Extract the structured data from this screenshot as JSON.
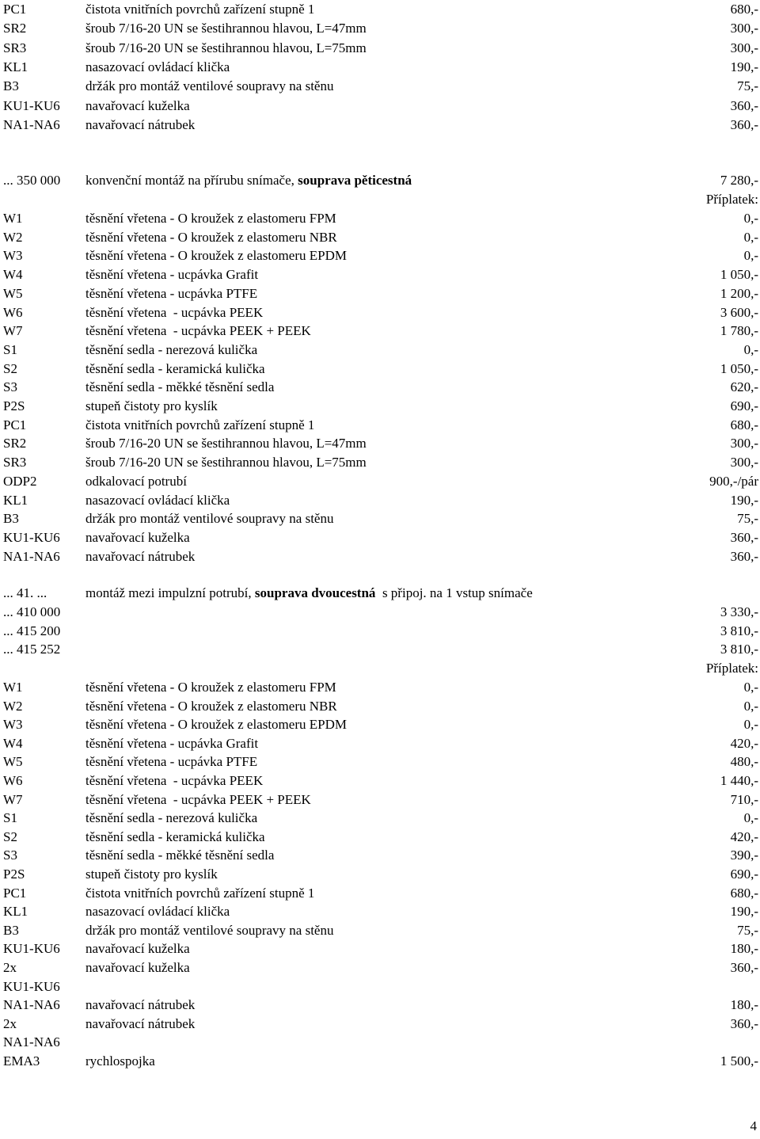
{
  "block1": [
    {
      "code": "PC1",
      "desc": "čistota vnitřních povrchů zařízení stupně 1",
      "price": "680,-"
    },
    {
      "code": "SR2",
      "desc": "šroub 7/16-20 UN se šestihrannou hlavou, L=47mm",
      "price": "300,-"
    },
    {
      "code": "SR3",
      "desc": "šroub 7/16-20 UN se šestihrannou hlavou, L=75mm",
      "price": "300,-"
    },
    {
      "code": "KL1",
      "desc": "nasazovací ovládací klička",
      "price": "190,-"
    },
    {
      "code": "B3",
      "desc": "držák pro montáž ventilové soupravy na stěnu",
      "price": "75,-"
    },
    {
      "code": "KU1-KU6",
      "desc": "navařovací kuželka",
      "price": "360,-"
    },
    {
      "code": "NA1-NA6",
      "desc": "navařovací nátrubek",
      "price": "360,-"
    }
  ],
  "section2": {
    "code": "... 350 000",
    "desc_plain": "konvenční montáž na přírubu snímače, ",
    "desc_bold": "souprava pěticestná",
    "price": "7 280,-",
    "surcharge": "Příplatek:"
  },
  "block2": [
    {
      "code": "W1",
      "desc": "těsnění vřetena - O kroužek z elastomeru FPM",
      "price": "0,-"
    },
    {
      "code": "W2",
      "desc": "těsnění vřetena - O kroužek z elastomeru NBR",
      "price": "0,-"
    },
    {
      "code": "W3",
      "desc": "těsnění vřetena - O kroužek z elastomeru EPDM",
      "price": "0,-"
    },
    {
      "code": "W4",
      "desc": "těsnění vřetena - ucpávka Grafit",
      "price": "1 050,-"
    },
    {
      "code": "W5",
      "desc": "těsnění vřetena - ucpávka PTFE",
      "price": "1 200,-"
    },
    {
      "code": "W6",
      "desc": "těsnění vřetena  - ucpávka PEEK",
      "price": "3 600,-"
    },
    {
      "code": "W7",
      "desc": "těsnění vřetena  - ucpávka PEEK + PEEK",
      "price": "1 780,-"
    },
    {
      "code": "S1",
      "desc": "těsnění sedla - nerezová kulička",
      "price": "0,-"
    },
    {
      "code": "S2",
      "desc": "těsnění sedla - keramická kulička",
      "price": "1 050,-"
    },
    {
      "code": "S3",
      "desc": "těsnění sedla - měkké těsnění sedla",
      "price": "620,-"
    },
    {
      "code": "P2S",
      "desc": "stupeň čistoty pro kyslík",
      "price": "690,-"
    },
    {
      "code": "PC1",
      "desc": "čistota vnitřních povrchů zařízení stupně 1",
      "price": "680,-"
    },
    {
      "code": "SR2",
      "desc": "šroub 7/16-20 UN se šestihrannou hlavou, L=47mm",
      "price": "300,-"
    },
    {
      "code": "SR3",
      "desc": "šroub 7/16-20 UN se šestihrannou hlavou, L=75mm",
      "price": "300,-"
    },
    {
      "code": "ODP2",
      "desc": "odkalovací potrubí",
      "price": "900,-/pár"
    },
    {
      "code": "KL1",
      "desc": "nasazovací ovládací klička",
      "price": "190,-"
    },
    {
      "code": "B3",
      "desc": "držák pro montáž ventilové soupravy na stěnu",
      "price": "75,-"
    },
    {
      "code": "KU1-KU6",
      "desc": "navařovací kuželka",
      "price": "360,-"
    },
    {
      "code": "NA1-NA6",
      "desc": "navařovací nátrubek",
      "price": "360,-"
    }
  ],
  "section3": {
    "code": "... 41. ...",
    "desc_plain1": "montáž mezi impulzní potrubí, ",
    "desc_bold": "souprava dvoucestná",
    "desc_plain2": "  s připoj. na 1 vstup snímače",
    "variants": [
      {
        "code": "... 410 000",
        "price": "3 330,-"
      },
      {
        "code": "... 415 200",
        "price": "3 810,-"
      },
      {
        "code": "... 415 252",
        "price": "3 810,-"
      }
    ],
    "surcharge": "Příplatek:"
  },
  "block3": [
    {
      "code": "W1",
      "desc": "těsnění vřetena - O kroužek z elastomeru FPM",
      "price": "0,-"
    },
    {
      "code": "W2",
      "desc": "těsnění vřetena - O kroužek z elastomeru NBR",
      "price": "0,-"
    },
    {
      "code": "W3",
      "desc": "těsnění vřetena - O kroužek z elastomeru EPDM",
      "price": "0,-"
    },
    {
      "code": "W4",
      "desc": "těsnění vřetena - ucpávka Grafit",
      "price": "420,-"
    },
    {
      "code": "W5",
      "desc": "těsnění vřetena - ucpávka PTFE",
      "price": "480,-"
    },
    {
      "code": "W6",
      "desc": "těsnění vřetena  - ucpávka PEEK",
      "price": "1 440,-"
    },
    {
      "code": "W7",
      "desc": "těsnění vřetena  - ucpávka PEEK + PEEK",
      "price": "710,-"
    },
    {
      "code": "S1",
      "desc": "těsnění sedla - nerezová kulička",
      "price": "0,-"
    },
    {
      "code": "S2",
      "desc": "těsnění sedla - keramická kulička",
      "price": "420,-"
    },
    {
      "code": "S3",
      "desc": "těsnění sedla - měkké těsnění sedla",
      "price": "390,-"
    },
    {
      "code": "P2S",
      "desc": "stupeň čistoty pro kyslík",
      "price": "690,-"
    },
    {
      "code": "PC1",
      "desc": "čistota vnitřních povrchů zařízení stupně 1",
      "price": "680,-"
    },
    {
      "code": "KL1",
      "desc": "nasazovací ovládací klička",
      "price": "190,-"
    },
    {
      "code": "B3",
      "desc": "držák pro montáž ventilové soupravy na stěnu",
      "price": "75,-"
    },
    {
      "code": "KU1-KU6",
      "desc": "navařovací kuželka",
      "price": "180,-"
    },
    {
      "code": "2x",
      "desc": "navařovací kuželka",
      "price": "360,-"
    },
    {
      "code": "KU1-KU6",
      "desc": "",
      "price": ""
    },
    {
      "code": "NA1-NA6",
      "desc": "navařovací nátrubek",
      "price": "180,-"
    },
    {
      "code": "2x",
      "desc": "navařovací nátrubek",
      "price": "360,-"
    },
    {
      "code": "NA1-NA6",
      "desc": "",
      "price": ""
    },
    {
      "code": "EMA3",
      "desc": "rychlospojka",
      "price": "1 500,-"
    }
  ],
  "page_number": "4"
}
